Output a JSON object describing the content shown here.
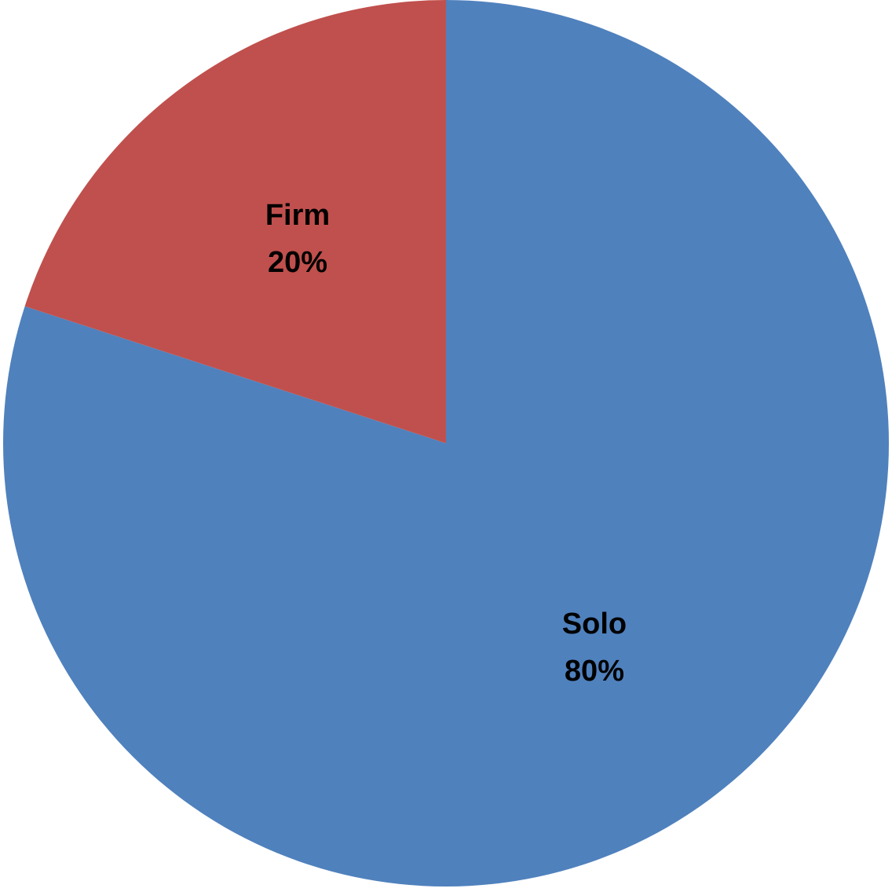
{
  "chart_data": {
    "type": "pie",
    "title": "",
    "start_angle_deg": 0,
    "direction": "clockwise",
    "legend": "none",
    "slices": [
      {
        "name": "Solo",
        "value": 80,
        "label": "80%",
        "color": "#4F81BD"
      },
      {
        "name": "Firm",
        "value": 20,
        "label": "20%",
        "color": "#C0504D"
      }
    ]
  }
}
